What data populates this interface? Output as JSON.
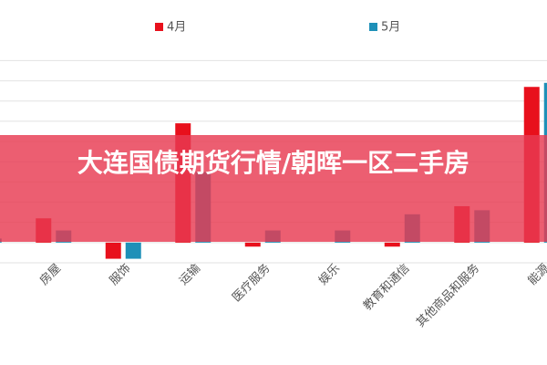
{
  "chart_data": {
    "type": "bar",
    "overlay_title": "大连国债期货行情/朝晖一区二手房",
    "categories": [
      null,
      "房屋",
      "服饰",
      "运输",
      "医疗服务",
      "娱乐",
      "教育和通信",
      "其他商品和服务",
      "能源"
    ],
    "series": [
      {
        "name": "4月",
        "color": "#e8101c",
        "values": [
          null,
          1.2,
          -0.8,
          5.9,
          -0.2,
          0,
          -0.2,
          1.8,
          7.7
        ]
      },
      {
        "name": "5月",
        "color": "#1e90b8",
        "values": [
          0.2,
          0.6,
          -0.8,
          3.5,
          0.6,
          0.6,
          1.4,
          1.6,
          7.9
        ]
      }
    ],
    "ylim": [
      -1,
      9.2
    ],
    "yticks": [
      -1,
      0,
      1,
      2,
      3,
      4,
      5,
      6,
      7,
      8,
      9
    ],
    "grid": true
  }
}
